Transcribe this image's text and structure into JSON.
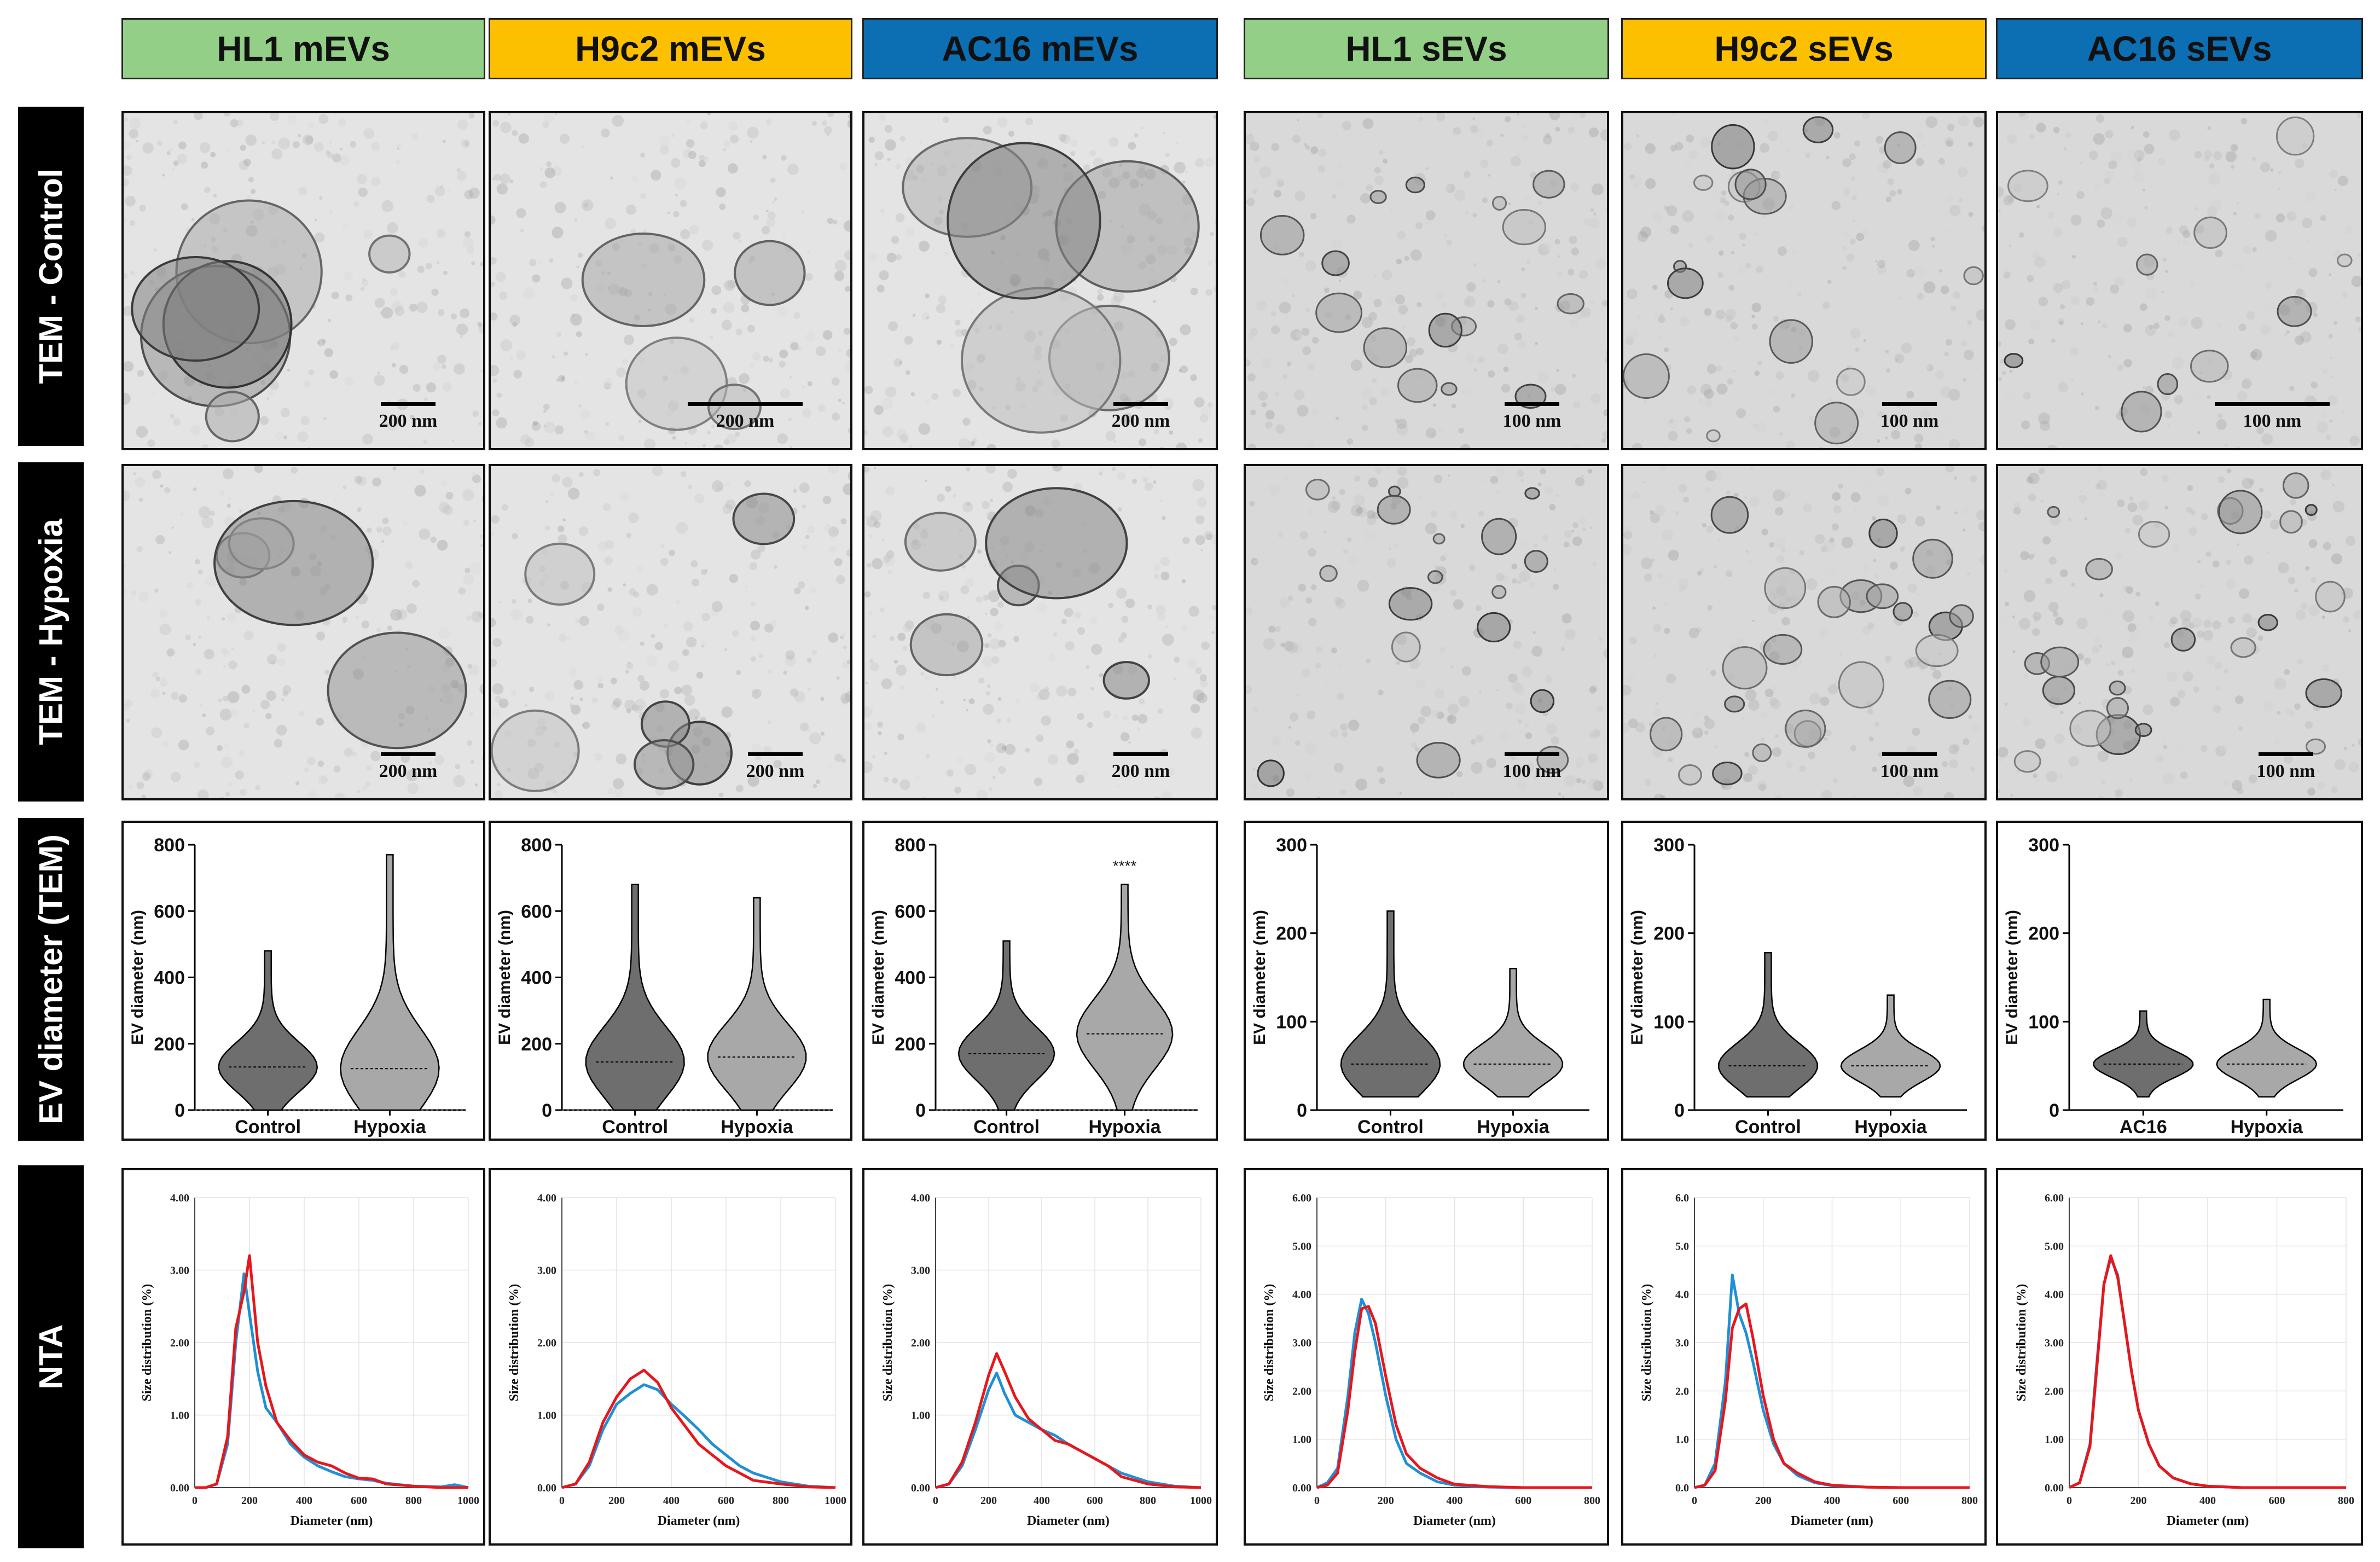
{
  "columns": [
    {
      "label": "HL1 mEVs",
      "color": "#93cf87"
    },
    {
      "label": "H9c2 mEVs",
      "color": "#fdc000"
    },
    {
      "label": "AC16 mEVs",
      "color": "#0c6eb3"
    },
    {
      "label": "HL1 sEVs",
      "color": "#93cf87"
    },
    {
      "label": "H9c2 sEVs",
      "color": "#fdc000"
    },
    {
      "label": "AC16 sEVs",
      "color": "#0c6eb3"
    }
  ],
  "rows": [
    {
      "label": "TEM - Control"
    },
    {
      "label": "TEM - Hypoxia"
    },
    {
      "label": "EV diameter (TEM)"
    },
    {
      "label": "NTA"
    }
  ],
  "tem_scale_bars": [
    [
      "200 nm",
      "200 nm",
      "200 nm",
      "100 nm",
      "100 nm",
      "100 nm"
    ],
    [
      "200 nm",
      "200 nm",
      "200 nm",
      "100 nm",
      "100 nm",
      "100 nm"
    ]
  ],
  "violin_plots": [
    {
      "ylabel": "EV diameter (nm)",
      "ylim": [
        0,
        800
      ],
      "yticks": [
        "0",
        "200",
        "400",
        "600",
        "800"
      ],
      "categories": [
        "Control",
        "Hypoxia"
      ],
      "medians": [
        130,
        125
      ],
      "maxima": [
        480,
        770
      ],
      "annotation": ""
    },
    {
      "ylabel": "EV diameter (nm)",
      "ylim": [
        0,
        800
      ],
      "yticks": [
        "0",
        "200",
        "400",
        "600",
        "800"
      ],
      "categories": [
        "Control",
        "Hypoxia"
      ],
      "medians": [
        145,
        160
      ],
      "maxima": [
        680,
        640
      ],
      "annotation": ""
    },
    {
      "ylabel": "EV diameter (nm)",
      "ylim": [
        0,
        800
      ],
      "yticks": [
        "0",
        "200",
        "400",
        "600",
        "800"
      ],
      "categories": [
        "Control",
        "Hypoxia"
      ],
      "medians": [
        170,
        230
      ],
      "maxima": [
        510,
        680
      ],
      "annotation": "****"
    },
    {
      "ylabel": "EV diameter (nm)",
      "ylim": [
        0,
        300
      ],
      "yticks": [
        "0",
        "100",
        "200",
        "300"
      ],
      "categories": [
        "Control",
        "Hypoxia"
      ],
      "medians": [
        52,
        52
      ],
      "maxima": [
        225,
        160
      ],
      "annotation": ""
    },
    {
      "ylabel": "EV diameter (nm)",
      "ylim": [
        0,
        300
      ],
      "yticks": [
        "0",
        "100",
        "200",
        "300"
      ],
      "categories": [
        "Control",
        "Hypoxia"
      ],
      "medians": [
        50,
        50
      ],
      "maxima": [
        178,
        130
      ],
      "annotation": ""
    },
    {
      "ylabel": "EV diameter (nm)",
      "ylim": [
        0,
        300
      ],
      "yticks": [
        "0",
        "100",
        "200",
        "300"
      ],
      "categories": [
        "AC16",
        "Hypoxia"
      ],
      "medians": [
        52,
        52
      ],
      "maxima": [
        112,
        125
      ],
      "annotation": ""
    }
  ],
  "chart_data": [
    {
      "type": "line",
      "xlabel": "Diameter (nm)",
      "ylabel": "Size distribution (%)",
      "xlim": [
        0,
        1000
      ],
      "ylim": [
        0,
        4
      ],
      "xticks": [
        "0",
        "200",
        "400",
        "600",
        "800",
        "1000"
      ],
      "yticks": [
        "0.00",
        "1.00",
        "2.00",
        "3.00",
        "4.00"
      ],
      "series": [
        {
          "color": "#1f8fd6",
          "x": [
            0,
            40,
            80,
            120,
            150,
            180,
            200,
            230,
            260,
            300,
            350,
            400,
            450,
            500,
            550,
            600,
            650,
            700,
            800,
            900,
            950,
            1000
          ],
          "y": [
            0,
            0,
            0.05,
            0.6,
            2.0,
            2.95,
            2.4,
            1.6,
            1.1,
            0.9,
            0.6,
            0.42,
            0.3,
            0.22,
            0.15,
            0.12,
            0.1,
            0.06,
            0.02,
            0.01,
            0.04,
            0
          ]
        },
        {
          "color": "#e8161b",
          "x": [
            0,
            40,
            80,
            120,
            150,
            180,
            200,
            230,
            260,
            300,
            350,
            400,
            450,
            500,
            550,
            600,
            650,
            700,
            800,
            900,
            1000
          ],
          "y": [
            0,
            0,
            0.05,
            0.7,
            2.2,
            2.7,
            3.2,
            2.0,
            1.4,
            0.9,
            0.65,
            0.45,
            0.35,
            0.3,
            0.2,
            0.13,
            0.12,
            0.05,
            0.02,
            0,
            0
          ]
        }
      ]
    },
    {
      "type": "line",
      "xlabel": "Diameter (nm)",
      "ylabel": "Size distribution (%)",
      "xlim": [
        0,
        1000
      ],
      "ylim": [
        0,
        4
      ],
      "xticks": [
        "0",
        "200",
        "400",
        "600",
        "800",
        "1000"
      ],
      "yticks": [
        "0.00",
        "1.00",
        "2.00",
        "3.00",
        "4.00"
      ],
      "series": [
        {
          "color": "#1f8fd6",
          "x": [
            0,
            50,
            100,
            150,
            200,
            250,
            300,
            350,
            400,
            450,
            500,
            550,
            600,
            650,
            700,
            800,
            900,
            1000
          ],
          "y": [
            0,
            0.05,
            0.3,
            0.8,
            1.15,
            1.3,
            1.42,
            1.35,
            1.15,
            0.98,
            0.8,
            0.6,
            0.45,
            0.3,
            0.2,
            0.08,
            0.02,
            0
          ]
        },
        {
          "color": "#e8161b",
          "x": [
            0,
            50,
            100,
            150,
            200,
            250,
            300,
            350,
            400,
            450,
            500,
            550,
            600,
            650,
            700,
            800,
            900,
            1000
          ],
          "y": [
            0,
            0.05,
            0.35,
            0.9,
            1.25,
            1.5,
            1.62,
            1.45,
            1.1,
            0.85,
            0.6,
            0.45,
            0.3,
            0.2,
            0.1,
            0.05,
            0.01,
            0
          ]
        }
      ]
    },
    {
      "type": "line",
      "xlabel": "Diameter (nm)",
      "ylabel": "Size distribution (%)",
      "xlim": [
        0,
        1000
      ],
      "ylim": [
        0,
        4
      ],
      "xticks": [
        "0",
        "200",
        "400",
        "600",
        "800",
        "1000"
      ],
      "yticks": [
        "0.00",
        "1.00",
        "2.00",
        "3.00",
        "4.00"
      ],
      "series": [
        {
          "color": "#1f8fd6",
          "x": [
            0,
            50,
            100,
            150,
            200,
            230,
            260,
            300,
            350,
            400,
            450,
            500,
            550,
            600,
            650,
            700,
            800,
            900,
            1000
          ],
          "y": [
            0,
            0.05,
            0.3,
            0.8,
            1.35,
            1.58,
            1.3,
            1.0,
            0.9,
            0.8,
            0.72,
            0.6,
            0.5,
            0.4,
            0.3,
            0.2,
            0.08,
            0.02,
            0
          ]
        },
        {
          "color": "#e8161b",
          "x": [
            0,
            50,
            100,
            150,
            200,
            230,
            260,
            300,
            350,
            400,
            450,
            500,
            550,
            600,
            650,
            700,
            800,
            900,
            1000
          ],
          "y": [
            0,
            0.05,
            0.35,
            0.9,
            1.55,
            1.85,
            1.6,
            1.25,
            0.95,
            0.8,
            0.65,
            0.6,
            0.5,
            0.4,
            0.3,
            0.15,
            0.05,
            0.01,
            0
          ]
        }
      ]
    },
    {
      "type": "line",
      "xlabel": "Diameter (nm)",
      "ylabel": "Size distribution (%)",
      "xlim": [
        0,
        800
      ],
      "ylim": [
        0,
        6
      ],
      "xticks": [
        "0",
        "200",
        "400",
        "600",
        "800"
      ],
      "yticks": [
        "0.00",
        "1.00",
        "2.00",
        "3.00",
        "4.00",
        "5.00",
        "6.00"
      ],
      "series": [
        {
          "color": "#1f8fd6",
          "x": [
            0,
            30,
            60,
            90,
            110,
            130,
            150,
            170,
            200,
            230,
            260,
            300,
            350,
            400,
            500,
            600,
            800
          ],
          "y": [
            0,
            0.1,
            0.4,
            1.9,
            3.2,
            3.9,
            3.6,
            3.0,
            1.9,
            1.0,
            0.5,
            0.3,
            0.12,
            0.05,
            0.01,
            0,
            0
          ]
        },
        {
          "color": "#e8161b",
          "x": [
            0,
            30,
            60,
            90,
            110,
            130,
            150,
            170,
            200,
            230,
            260,
            300,
            350,
            400,
            500,
            600,
            800
          ],
          "y": [
            0,
            0.05,
            0.3,
            1.6,
            2.8,
            3.7,
            3.75,
            3.4,
            2.3,
            1.3,
            0.7,
            0.4,
            0.2,
            0.07,
            0.02,
            0,
            0
          ]
        }
      ]
    },
    {
      "type": "line",
      "xlabel": "Diameter (nm)",
      "ylabel": "Size distribution (%)",
      "xlim": [
        0,
        800
      ],
      "ylim": [
        0,
        6
      ],
      "xticks": [
        "0",
        "200",
        "400",
        "600",
        "800"
      ],
      "yticks": [
        "0.0",
        "1.0",
        "2.0",
        "3.0",
        "4.0",
        "5.0",
        "6.0"
      ],
      "series": [
        {
          "color": "#1f8fd6",
          "x": [
            0,
            30,
            60,
            90,
            110,
            130,
            150,
            170,
            200,
            230,
            260,
            300,
            350,
            400,
            500,
            600,
            800
          ],
          "y": [
            0,
            0.05,
            0.5,
            2.2,
            4.4,
            3.6,
            3.2,
            2.6,
            1.6,
            0.9,
            0.5,
            0.25,
            0.1,
            0.04,
            0.01,
            0,
            0
          ]
        },
        {
          "color": "#e8161b",
          "x": [
            0,
            30,
            60,
            90,
            110,
            130,
            150,
            170,
            200,
            230,
            260,
            300,
            350,
            400,
            500,
            600,
            800
          ],
          "y": [
            0,
            0.05,
            0.35,
            1.8,
            3.3,
            3.7,
            3.8,
            3.1,
            1.9,
            1.0,
            0.5,
            0.3,
            0.12,
            0.05,
            0.01,
            0,
            0
          ]
        }
      ]
    },
    {
      "type": "line",
      "xlabel": "Diameter (nm)",
      "ylabel": "Size distribution (%)",
      "xlim": [
        0,
        800
      ],
      "ylim": [
        0,
        6
      ],
      "xticks": [
        "0",
        "200",
        "400",
        "600",
        "800"
      ],
      "yticks": [
        "0.00",
        "1.00",
        "2.00",
        "3.00",
        "4.00",
        "5.00",
        "6.00"
      ],
      "series": [
        {
          "color": "#1f8fd6",
          "x": [
            0,
            30,
            60,
            80,
            100,
            120,
            140,
            160,
            180,
            200,
            230,
            260,
            300,
            350,
            400,
            500,
            600,
            800
          ],
          "y": [
            0,
            0.1,
            0.9,
            2.6,
            4.2,
            4.75,
            4.4,
            3.4,
            2.4,
            1.6,
            0.9,
            0.45,
            0.2,
            0.08,
            0.03,
            0,
            0,
            0
          ]
        },
        {
          "color": "#e8161b",
          "x": [
            0,
            30,
            60,
            80,
            100,
            120,
            140,
            160,
            180,
            200,
            230,
            260,
            300,
            350,
            400,
            500,
            600,
            800
          ],
          "y": [
            0,
            0.1,
            0.85,
            2.5,
            4.2,
            4.8,
            4.35,
            3.4,
            2.4,
            1.6,
            0.9,
            0.45,
            0.2,
            0.08,
            0.03,
            0,
            0,
            0
          ]
        }
      ]
    }
  ]
}
